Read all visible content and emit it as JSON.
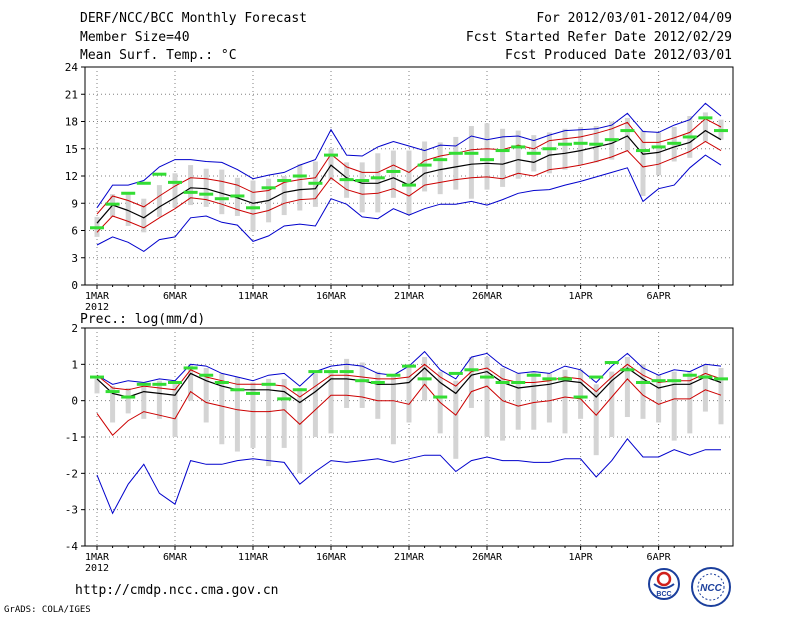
{
  "header": {
    "line1_left": "DERF/NCC/BCC Monthly Forecast",
    "line2_left": "Member Size=40",
    "line3_left": "Mean Surf. Temp.: °C",
    "line1_right": "For 2012/03/01-2012/04/09",
    "line2_right": "Fcst Started Refer Date 2012/02/29",
    "line3_right": "Fcst Produced Date 2012/03/01"
  },
  "panel2_label": "Prec.: log(mm/d)",
  "footer": {
    "url": "http://cmdp.ncc.cma.gov.cn",
    "grads": "GrADS: COLA/IGES"
  },
  "logos": {
    "bcc": "BCC",
    "ncc": "NCC"
  },
  "colors": {
    "mean": "#000000",
    "spread": "#cc0000",
    "envelope": "#0000cc",
    "obs": "#33dd33",
    "box": "#d4d4d4",
    "grid": "#808080"
  },
  "chart_data": [
    {
      "type": "line",
      "title": "Mean Surf. Temp.: °C",
      "x_days": 40,
      "x_tick_labels": [
        "1MAR",
        "6MAR",
        "11MAR",
        "16MAR",
        "21MAR",
        "26MAR",
        "1APR",
        "6APR"
      ],
      "x_tick_days": [
        0,
        5,
        10,
        15,
        20,
        25,
        31,
        36
      ],
      "year_label": "2012",
      "ylim": [
        0,
        24
      ],
      "yticks": [
        0,
        3,
        6,
        9,
        12,
        15,
        18,
        21,
        24
      ],
      "series": [
        {
          "name": "ensemble_mean",
          "values": [
            6.8,
            8.8,
            8.2,
            7.4,
            8.6,
            9.6,
            10.7,
            10.6,
            10.1,
            9.6,
            9.0,
            9.3,
            10.2,
            10.5,
            10.6,
            13.2,
            11.8,
            11.2,
            11.2,
            11.8,
            11.0,
            12.3,
            12.7,
            13.0,
            13.3,
            13.4,
            13.3,
            13.8,
            13.5,
            14.3,
            14.5,
            14.8,
            15.2,
            15.6,
            16.4,
            14.4,
            14.6,
            15.2,
            15.7,
            17.0,
            16.0
          ]
        },
        {
          "name": "mean_plus_spread",
          "values": [
            7.8,
            9.8,
            9.3,
            8.6,
            9.8,
            10.9,
            11.8,
            11.7,
            11.4,
            11.0,
            10.2,
            10.4,
            11.3,
            11.6,
            11.8,
            14.4,
            13.0,
            12.4,
            12.4,
            13.2,
            12.4,
            13.7,
            14.2,
            14.5,
            14.9,
            15.0,
            14.9,
            15.4,
            15.0,
            15.9,
            16.1,
            16.3,
            16.7,
            17.2,
            17.9,
            15.7,
            15.7,
            16.2,
            16.8,
            18.3,
            17.4
          ]
        },
        {
          "name": "mean_minus_spread",
          "values": [
            5.8,
            7.6,
            7.0,
            6.3,
            7.4,
            8.4,
            9.6,
            9.4,
            8.9,
            8.3,
            7.8,
            8.2,
            9.0,
            9.4,
            9.5,
            11.8,
            10.5,
            10.0,
            10.1,
            10.6,
            9.8,
            11.0,
            11.3,
            11.6,
            11.8,
            11.9,
            11.7,
            12.3,
            12.0,
            12.7,
            12.9,
            13.2,
            13.6,
            14.1,
            14.8,
            13.0,
            13.3,
            14.0,
            14.7,
            15.8,
            14.8
          ]
        },
        {
          "name": "envelope_max",
          "values": [
            8.5,
            11.0,
            11.0,
            11.5,
            13.0,
            13.8,
            13.8,
            13.6,
            13.5,
            12.7,
            11.7,
            12.1,
            12.4,
            13.2,
            13.8,
            17.1,
            14.3,
            14.2,
            15.2,
            15.8,
            15.3,
            14.8,
            15.4,
            15.3,
            16.4,
            16.0,
            16.3,
            16.4,
            15.9,
            16.5,
            17.0,
            17.1,
            17.2,
            17.6,
            18.9,
            16.9,
            16.8,
            17.6,
            18.2,
            20.0,
            18.6
          ]
        },
        {
          "name": "envelope_min",
          "values": [
            4.4,
            5.3,
            4.7,
            3.7,
            5.0,
            5.3,
            7.4,
            7.6,
            6.9,
            6.6,
            4.8,
            5.4,
            6.5,
            6.7,
            6.5,
            9.5,
            8.9,
            7.5,
            7.3,
            8.4,
            7.7,
            8.4,
            8.9,
            8.9,
            9.2,
            8.8,
            9.4,
            10.1,
            10.4,
            10.5,
            11.0,
            11.4,
            11.9,
            12.4,
            12.9,
            9.2,
            10.6,
            11.0,
            12.9,
            14.3,
            13.2
          ]
        },
        {
          "name": "observed",
          "values": [
            6.3,
            8.9,
            10.1,
            11.2,
            12.2,
            11.3,
            10.2,
            10.0,
            9.5,
            9.8,
            8.5,
            10.7,
            11.5,
            12.0,
            11.2,
            14.3,
            11.6,
            11.5,
            11.8,
            12.5,
            11.0,
            13.2,
            13.8,
            14.5,
            14.5,
            13.8,
            14.8,
            15.2,
            14.5,
            15.0,
            15.5,
            15.6,
            15.5,
            16.0,
            17.0,
            14.8,
            15.2,
            15.6,
            16.3,
            18.4,
            17.0
          ]
        },
        {
          "name": "box_top",
          "values": [
            7.5,
            10.0,
            10.0,
            9.5,
            11.0,
            12.3,
            13.2,
            12.8,
            12.7,
            11.8,
            11.5,
            11.7,
            12.0,
            13.3,
            13.6,
            15.0,
            13.5,
            13.5,
            14.5,
            14.8,
            14.8,
            15.8,
            15.7,
            16.3,
            17.5,
            17.8,
            17.2,
            17.0,
            16.5,
            16.8,
            17.2,
            17.4,
            17.5,
            18.0,
            18.4,
            17.0,
            16.8,
            17.4,
            18.6,
            19.0,
            18.2
          ]
        },
        {
          "name": "box_bottom",
          "values": [
            5.3,
            7.5,
            6.5,
            5.8,
            7.5,
            8.5,
            8.8,
            8.6,
            7.8,
            7.6,
            5.9,
            6.9,
            7.7,
            8.2,
            8.6,
            11.5,
            9.6,
            8.0,
            8.0,
            9.6,
            7.7,
            10.3,
            10.0,
            10.5,
            9.5,
            10.5,
            10.8,
            11.7,
            12.5,
            12.3,
            12.7,
            13.2,
            13.5,
            13.8,
            14.8,
            9.8,
            12.1,
            13.6,
            14.0,
            15.8,
            16.0
          ]
        }
      ]
    },
    {
      "type": "line",
      "title": "Prec.: log(mm/d)",
      "x_days": 40,
      "x_tick_labels": [
        "1MAR",
        "6MAR",
        "11MAR",
        "16MAR",
        "21MAR",
        "26MAR",
        "1APR",
        "6APR"
      ],
      "x_tick_days": [
        0,
        5,
        10,
        15,
        20,
        25,
        31,
        36
      ],
      "year_label": "2012",
      "ylim": [
        -4,
        2
      ],
      "yticks": [
        -4,
        -3,
        -2,
        -1,
        0,
        1,
        2
      ],
      "series": [
        {
          "name": "ensemble_mean",
          "values": [
            0.6,
            0.2,
            0.1,
            0.25,
            0.2,
            0.15,
            0.75,
            0.55,
            0.4,
            0.3,
            0.3,
            0.3,
            0.25,
            -0.05,
            0.25,
            0.6,
            0.6,
            0.55,
            0.45,
            0.45,
            0.5,
            0.9,
            0.5,
            0.2,
            0.7,
            0.8,
            0.5,
            0.35,
            0.4,
            0.45,
            0.55,
            0.5,
            0.1,
            0.55,
            0.9,
            0.6,
            0.35,
            0.45,
            0.45,
            0.65,
            0.5
          ]
        },
        {
          "name": "mean_plus_spread",
          "values": [
            0.7,
            0.35,
            0.3,
            0.4,
            0.35,
            0.3,
            0.85,
            0.65,
            0.55,
            0.45,
            0.45,
            0.45,
            0.4,
            0.1,
            0.4,
            0.7,
            0.7,
            0.65,
            0.6,
            0.6,
            0.65,
            1.0,
            0.65,
            0.4,
            0.8,
            0.9,
            0.6,
            0.5,
            0.5,
            0.55,
            0.65,
            0.6,
            0.25,
            0.65,
            1.0,
            0.7,
            0.5,
            0.55,
            0.55,
            0.75,
            0.6
          ]
        },
        {
          "name": "mean_minus_spread",
          "values": [
            -0.35,
            -0.95,
            -0.55,
            -0.3,
            -0.4,
            -0.5,
            0.25,
            -0.05,
            -0.15,
            -0.25,
            -0.3,
            -0.3,
            -0.25,
            -0.65,
            -0.25,
            0.15,
            0.15,
            0.1,
            0.0,
            0.0,
            -0.1,
            0.45,
            -0.05,
            -0.4,
            0.25,
            0.4,
            0.0,
            -0.15,
            -0.05,
            0.0,
            0.1,
            0.05,
            -0.4,
            0.1,
            0.6,
            0.15,
            -0.1,
            0.05,
            0.05,
            0.3,
            0.15
          ]
        },
        {
          "name": "envelope_max",
          "values": [
            0.7,
            0.45,
            0.55,
            0.5,
            0.6,
            0.55,
            1.0,
            0.95,
            0.75,
            0.65,
            0.55,
            0.7,
            0.75,
            0.4,
            0.8,
            0.95,
            1.0,
            0.95,
            0.75,
            0.7,
            0.95,
            1.35,
            0.85,
            0.6,
            1.2,
            1.3,
            0.95,
            0.75,
            0.8,
            0.75,
            0.95,
            0.85,
            0.5,
            0.95,
            1.3,
            0.9,
            0.7,
            0.85,
            0.8,
            1.0,
            0.95
          ]
        },
        {
          "name": "envelope_min",
          "values": [
            -2.05,
            -3.1,
            -2.3,
            -1.75,
            -2.55,
            -2.85,
            -1.65,
            -1.75,
            -1.75,
            -1.65,
            -1.6,
            -1.65,
            -1.7,
            -2.3,
            -1.95,
            -1.65,
            -1.7,
            -1.65,
            -1.6,
            -1.7,
            -1.6,
            -1.5,
            -1.5,
            -1.95,
            -1.65,
            -1.55,
            -1.65,
            -1.65,
            -1.7,
            -1.7,
            -1.6,
            -1.6,
            -2.1,
            -1.65,
            -1.05,
            -1.55,
            -1.55,
            -1.35,
            -1.5,
            -1.35,
            -1.35
          ]
        },
        {
          "name": "observed",
          "values": [
            0.65,
            0.25,
            0.1,
            0.45,
            0.45,
            0.5,
            0.9,
            0.7,
            0.5,
            0.3,
            0.2,
            0.45,
            0.05,
            0.3,
            0.8,
            0.8,
            0.8,
            0.55,
            0.5,
            0.7,
            0.95,
            0.6,
            0.1,
            0.75,
            0.85,
            0.65,
            0.5,
            0.5,
            0.7,
            0.6,
            0.6,
            0.1,
            0.65,
            1.05,
            0.85,
            0.5,
            0.55,
            0.55,
            0.7,
            0.65,
            0.6
          ]
        },
        {
          "name": "box_top",
          "values": [
            0.65,
            0.4,
            0.35,
            0.5,
            0.55,
            0.55,
            1.0,
            0.9,
            0.75,
            0.65,
            0.5,
            0.6,
            0.6,
            0.35,
            0.75,
            0.85,
            1.15,
            1.05,
            0.8,
            0.7,
            1.0,
            1.2,
            0.8,
            0.55,
            1.2,
            1.2,
            0.9,
            0.75,
            0.8,
            0.75,
            0.85,
            0.85,
            0.45,
            0.8,
            1.2,
            1.0,
            0.7,
            0.8,
            0.8,
            1.0,
            0.9
          ]
        },
        {
          "name": "box_bottom",
          "values": [
            0.2,
            -0.6,
            -0.35,
            -0.5,
            -0.5,
            -1.0,
            0.0,
            -0.6,
            -1.2,
            -1.4,
            -1.3,
            -1.8,
            -1.3,
            -2.0,
            -1.0,
            -0.9,
            -0.2,
            -0.2,
            -0.5,
            -1.2,
            -0.6,
            0.0,
            -0.9,
            -1.6,
            -0.2,
            -1.0,
            -1.1,
            -0.8,
            -0.8,
            -0.6,
            -0.9,
            -0.5,
            -1.5,
            -1.0,
            -0.45,
            -0.5,
            -0.6,
            -1.1,
            -0.9,
            -0.3,
            -0.65
          ]
        }
      ]
    }
  ]
}
